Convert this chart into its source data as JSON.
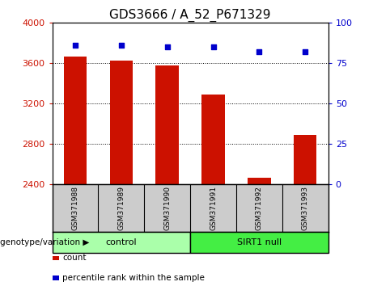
{
  "title": "GDS3666 / A_52_P671329",
  "categories": [
    "GSM371988",
    "GSM371989",
    "GSM371990",
    "GSM371991",
    "GSM371992",
    "GSM371993"
  ],
  "bar_values": [
    3670,
    3630,
    3580,
    3290,
    2470,
    2890
  ],
  "percentile_values": [
    86,
    86,
    85,
    85,
    82,
    82
  ],
  "ylim_left": [
    2400,
    4000
  ],
  "ylim_right": [
    0,
    100
  ],
  "yticks_left": [
    2400,
    2800,
    3200,
    3600,
    4000
  ],
  "yticks_right": [
    0,
    25,
    50,
    75,
    100
  ],
  "bar_color": "#cc1100",
  "dot_color": "#0000cc",
  "grid_color": "#000000",
  "bar_width": 0.5,
  "control_label": "control",
  "sirt1_label": "SIRT1 null",
  "genotype_label": "genotype/variation",
  "legend_count": "count",
  "legend_percentile": "percentile rank within the sample",
  "control_color": "#aaffaa",
  "sirt1_color": "#44ee44",
  "label_bg_color": "#cccccc",
  "title_fontsize": 11,
  "tick_fontsize": 8,
  "label_fontsize": 8
}
